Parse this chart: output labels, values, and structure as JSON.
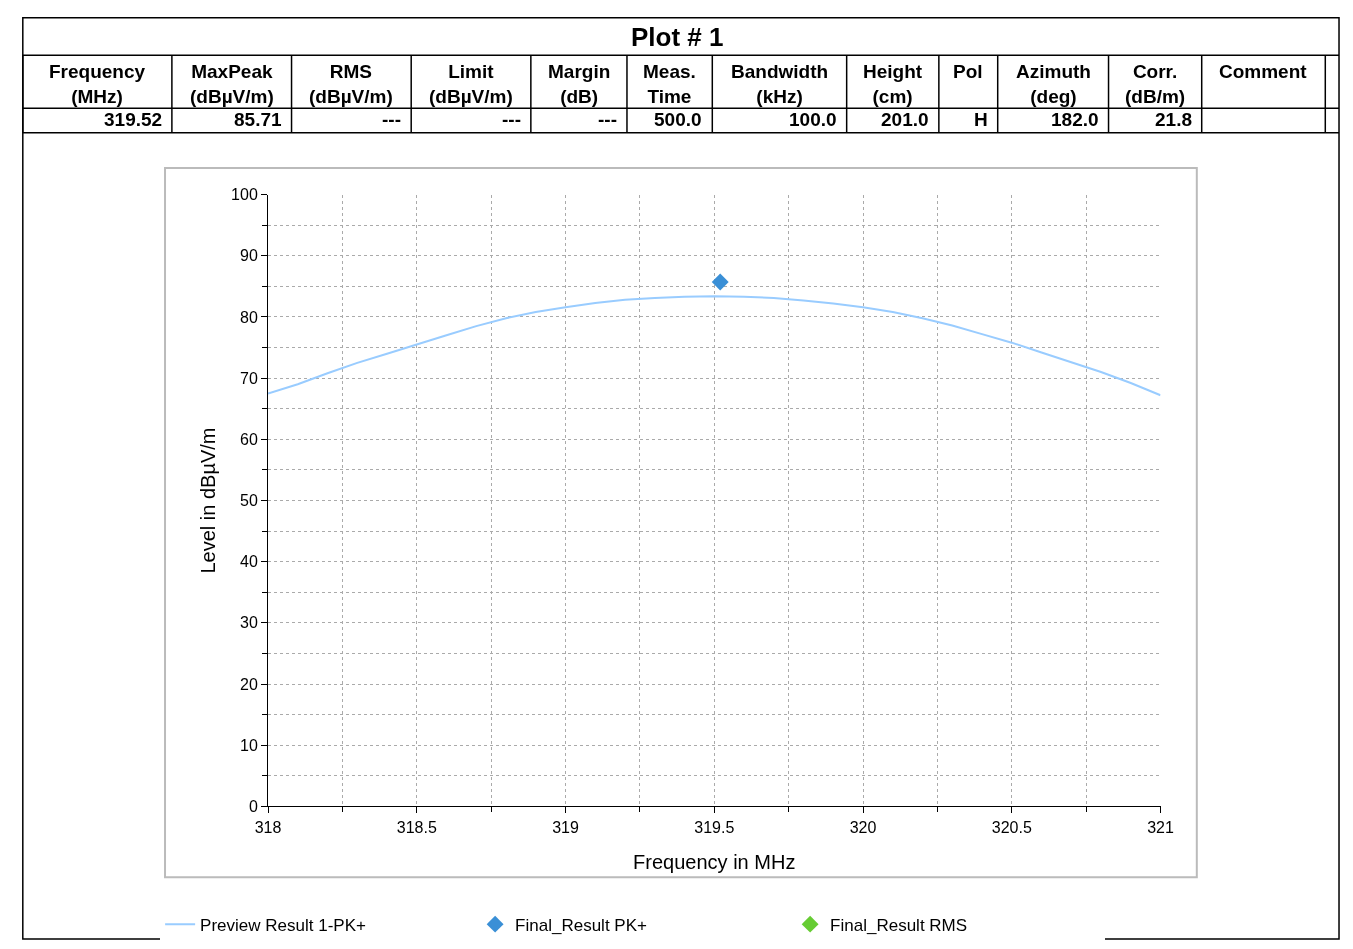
{
  "chart_data": [
    {
      "type": "other",
      "title": "Plot # 1",
      "categories": [
        "Frequency\n(MHz)",
        "MaxPeak\n(dBµV/m)",
        "RMS\n(dBµV/m)",
        "Limit\n(dBµV/m)",
        "Margin\n(dB)",
        "Meas.\nTime",
        "Bandwidth\n(kHz)",
        "Height\n(cm)",
        "Pol",
        "Azimuth\n(deg)",
        "Corr.\n(dB/m)",
        "Comment"
      ],
      "value_labels": [
        "319.52",
        "85.71",
        "---",
        "---",
        "---",
        "500.0",
        "100.0",
        "201.0",
        "H",
        "182.0",
        "21.8",
        null
      ]
    },
    {
      "type": "line",
      "xlabel": "Frequency in MHz",
      "ylabel": "Level in dBµV/m",
      "xlim": [
        318,
        321
      ],
      "xticks": [
        318,
        318.5,
        319,
        319.5,
        320,
        320.5,
        321
      ],
      "ylim": [
        0,
        100
      ],
      "yticks": [
        0,
        10,
        20,
        30,
        40,
        50,
        60,
        70,
        80,
        90,
        100
      ],
      "grid": true,
      "legend": "bottom",
      "series": [
        {
          "name": "Preview Result 1-PK+",
          "type": "line",
          "color": "#99ccff",
          "x": [
            318,
            318.1,
            318.2,
            318.3,
            318.4,
            318.5,
            318.6,
            318.7,
            318.8,
            318.9,
            319.0,
            319.1,
            319.2,
            319.3,
            319.4,
            319.5,
            319.6,
            319.7,
            319.8,
            319.9,
            320.0,
            320.1,
            320.2,
            320.3,
            320.4,
            320.5,
            320.6,
            320.7,
            320.8,
            320.9,
            321
          ],
          "values": [
            67.5,
            69,
            70.8,
            72.5,
            74,
            75.5,
            77,
            78.5,
            79.8,
            80.8,
            81.6,
            82.3,
            82.8,
            83.1,
            83.3,
            83.4,
            83.3,
            83.1,
            82.7,
            82.2,
            81.6,
            80.8,
            79.8,
            78.6,
            77.2,
            75.8,
            74.2,
            72.6,
            71,
            69.2,
            67.2
          ]
        },
        {
          "name": "Final_Result PK+",
          "type": "scatter",
          "marker": "diamond",
          "color": "#3a8fd6",
          "x": [
            319.52
          ],
          "values": [
            85.71
          ]
        },
        {
          "name": "Final_Result RMS",
          "type": "scatter",
          "marker": "diamond",
          "color": "#66cc33"
        }
      ]
    }
  ]
}
